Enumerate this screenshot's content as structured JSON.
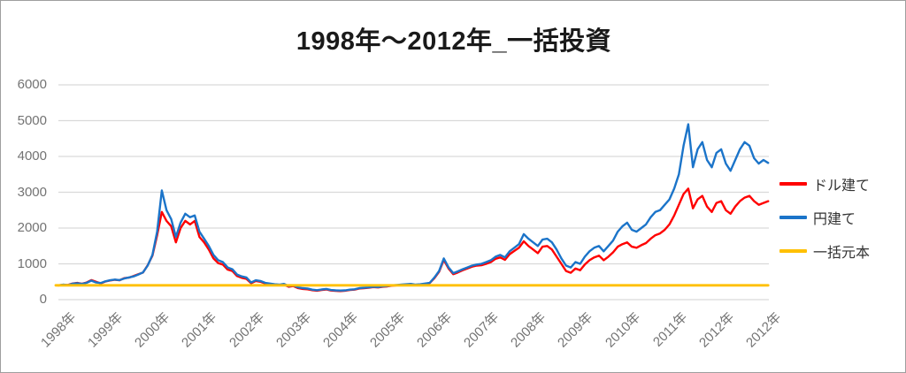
{
  "chart_data": {
    "type": "line",
    "title": "1998年～2012年_一括投資",
    "xlabel": "",
    "ylabel": "",
    "ylim": [
      0,
      6000
    ],
    "y_ticks": [
      0,
      1000,
      2000,
      3000,
      4000,
      5000,
      6000
    ],
    "grid": true,
    "legend_position": "right",
    "x_tick_labels": [
      "1998年",
      "1999年",
      "2000年",
      "2001年",
      "2002年",
      "2003年",
      "2004年",
      "2005年",
      "2006年",
      "2007年",
      "2008年",
      "2009年",
      "2010年",
      "2011年",
      "2012年",
      "2012年"
    ],
    "x_index": {
      "start": 0,
      "step": 0.1,
      "count": 152,
      "units": "x-axis tick intervals (1 tick = 1 year label)"
    },
    "colors": {
      "grid": "#d9d9d9",
      "axis_text": "#737373",
      "title_text": "#1a1a1a",
      "legend_text": "#333333",
      "frame_border": "#9e9e9e"
    },
    "series": [
      {
        "name": "ドル建て",
        "color": "#FF0000",
        "values": [
          395,
          415,
          410,
          450,
          470,
          445,
          480,
          545,
          500,
          455,
          505,
          535,
          555,
          540,
          600,
          615,
          660,
          710,
          755,
          960,
          1230,
          1800,
          2450,
          2200,
          2050,
          1600,
          2000,
          2200,
          2100,
          2200,
          1750,
          1600,
          1400,
          1150,
          1020,
          980,
          840,
          800,
          660,
          610,
          580,
          460,
          520,
          500,
          450,
          435,
          415,
          400,
          420,
          360,
          380,
          320,
          300,
          290,
          265,
          250,
          270,
          285,
          255,
          245,
          240,
          250,
          270,
          280,
          310,
          320,
          330,
          350,
          340,
          360,
          370,
          390,
          400,
          410,
          420,
          430,
          410,
          420,
          440,
          465,
          600,
          780,
          1110,
          870,
          710,
          760,
          820,
          870,
          920,
          950,
          960,
          1000,
          1050,
          1140,
          1180,
          1110,
          1270,
          1360,
          1450,
          1630,
          1500,
          1400,
          1300,
          1480,
          1500,
          1400,
          1200,
          1000,
          800,
          750,
          870,
          820,
          980,
          1100,
          1180,
          1230,
          1100,
          1200,
          1320,
          1480,
          1550,
          1600,
          1480,
          1450,
          1520,
          1580,
          1700,
          1800,
          1850,
          1950,
          2100,
          2350,
          2650,
          2950,
          3100,
          2550,
          2800,
          2900,
          2600,
          2450,
          2700,
          2750,
          2500,
          2400,
          2600,
          2750,
          2850,
          2900,
          2750,
          2650,
          2700,
          2750
        ]
      },
      {
        "name": "円建て",
        "color": "#1B74C9",
        "values": [
          400,
          420,
          405,
          445,
          460,
          440,
          470,
          530,
          480,
          465,
          510,
          540,
          560,
          545,
          590,
          620,
          650,
          700,
          760,
          950,
          1250,
          1900,
          3050,
          2500,
          2250,
          1750,
          2150,
          2400,
          2300,
          2350,
          1900,
          1700,
          1500,
          1250,
          1100,
          1050,
          900,
          850,
          700,
          650,
          620,
          480,
          540,
          520,
          470,
          450,
          430,
          420,
          440,
          380,
          400,
          340,
          320,
          310,
          280,
          265,
          285,
          300,
          270,
          260,
          255,
          260,
          280,
          290,
          320,
          330,
          340,
          360,
          350,
          370,
          380,
          400,
          410,
          420,
          430,
          440,
          420,
          430,
          450,
          470,
          620,
          800,
          1150,
          900,
          740,
          790,
          850,
          900,
          950,
          980,
          1000,
          1050,
          1100,
          1200,
          1250,
          1180,
          1350,
          1450,
          1550,
          1830,
          1700,
          1600,
          1500,
          1680,
          1700,
          1600,
          1400,
          1150,
          950,
          900,
          1050,
          1000,
          1200,
          1350,
          1450,
          1500,
          1350,
          1500,
          1650,
          1900,
          2050,
          2150,
          1950,
          1900,
          2000,
          2100,
          2300,
          2450,
          2500,
          2650,
          2800,
          3100,
          3500,
          4300,
          4900,
          3700,
          4200,
          4400,
          3900,
          3700,
          4100,
          4200,
          3800,
          3600,
          3900,
          4200,
          4400,
          4300,
          3950,
          3800,
          3900,
          3820
        ]
      },
      {
        "name": "一括元本",
        "color": "#FFC000",
        "constant": 400
      }
    ]
  }
}
